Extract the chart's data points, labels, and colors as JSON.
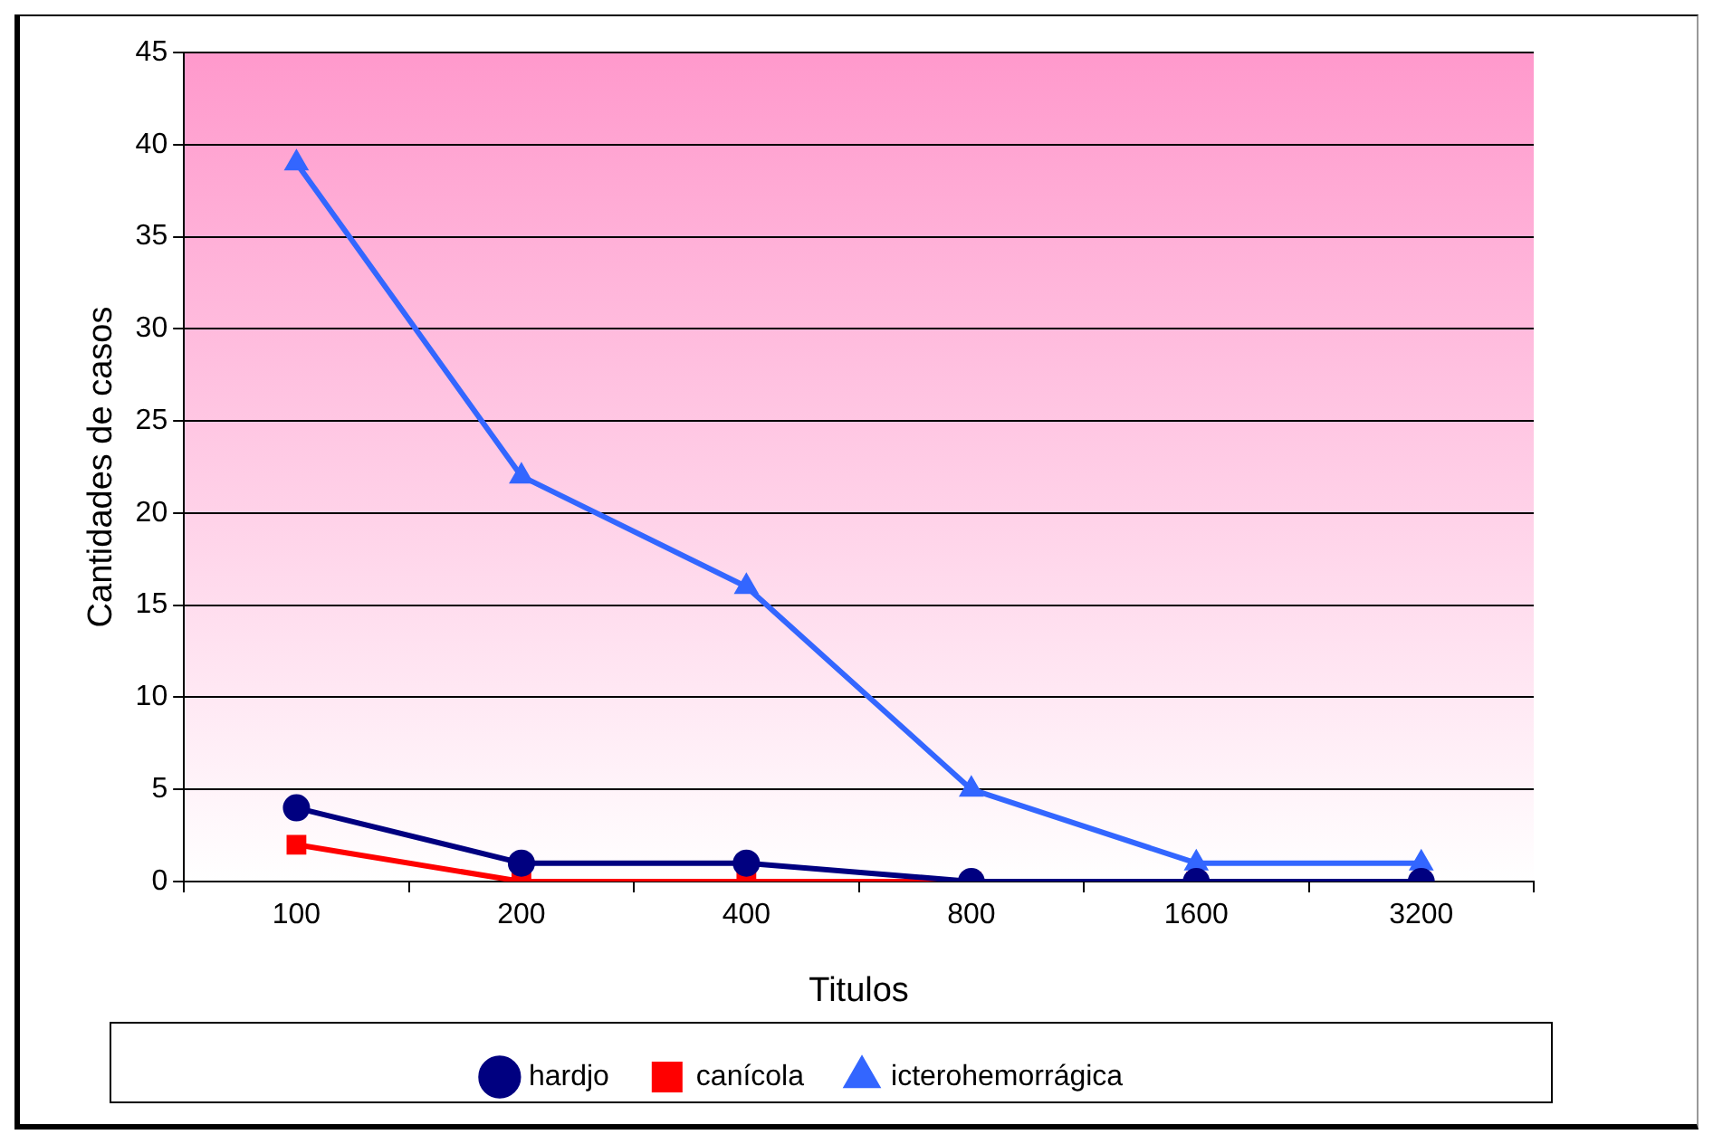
{
  "chart_data": {
    "type": "line",
    "xlabel": "Titulos",
    "ylabel": "Cantidades de casos",
    "categories": [
      "100",
      "200",
      "400",
      "800",
      "1600",
      "3200"
    ],
    "series": [
      {
        "name": "hardjo",
        "color": "#000080",
        "values": [
          4,
          1,
          1,
          0,
          0,
          0
        ],
        "marker": "circle"
      },
      {
        "name": "canícola",
        "color": "#ff0000",
        "values": [
          2,
          0,
          0,
          0,
          0,
          0
        ],
        "marker": "square"
      },
      {
        "name": "icterohemorrágica",
        "color": "#3366ff",
        "values": [
          39,
          22,
          16,
          5,
          1,
          1
        ],
        "marker": "triangle"
      }
    ],
    "ylim": [
      0,
      45
    ],
    "yticks": [
      0,
      5,
      10,
      15,
      20,
      25,
      30,
      35,
      40,
      45
    ],
    "grid": "y",
    "legend": "bottom",
    "line_style": "solid"
  }
}
